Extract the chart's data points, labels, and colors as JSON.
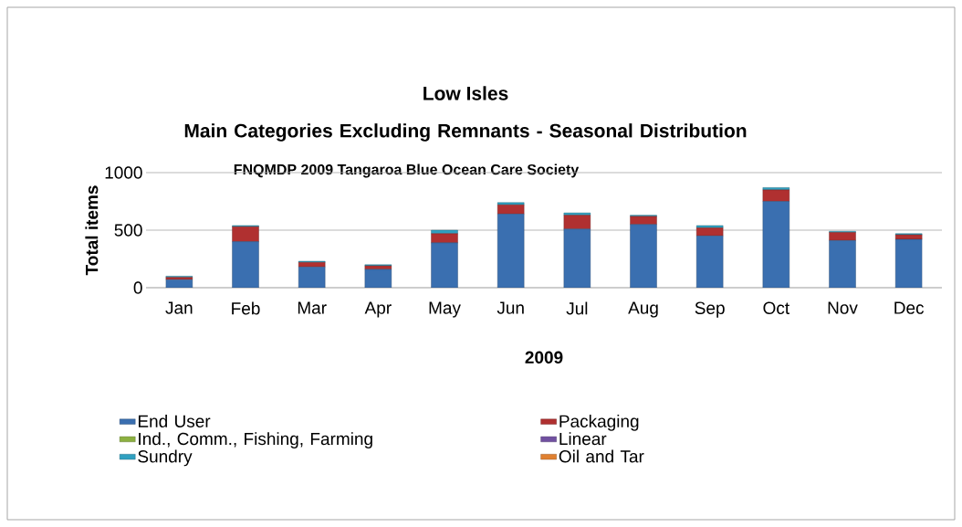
{
  "chart_data": {
    "type": "bar",
    "stacked": true,
    "title": "Low Isles",
    "subtitle": "Main Categories  Excluding Remnants - Seasonal Distribution",
    "annotations": [
      "FNQMDP 2009 Tangaroa Blue Ocean Care Society"
    ],
    "xlabel": "2009",
    "ylabel": "Total items",
    "categories": [
      "Jan",
      "Feb",
      "Mar",
      "Apr",
      "May",
      "Jun",
      "Jul",
      "Aug",
      "Sep",
      "Oct",
      "Nov",
      "Dec"
    ],
    "series": [
      {
        "name": "End User",
        "color": "#3a6fb0",
        "values": [
          70,
          400,
          180,
          160,
          390,
          640,
          510,
          550,
          450,
          750,
          410,
          420
        ]
      },
      {
        "name": "Packaging",
        "color": "#b03030",
        "values": [
          20,
          130,
          40,
          30,
          80,
          80,
          120,
          70,
          70,
          100,
          70,
          40
        ]
      },
      {
        "name": "Ind., Comm., Fishing, Farming",
        "color": "#8cb040",
        "values": [
          0,
          0,
          0,
          0,
          0,
          0,
          0,
          0,
          0,
          0,
          0,
          0
        ]
      },
      {
        "name": "Linear",
        "color": "#7050a0",
        "values": [
          0,
          0,
          0,
          0,
          0,
          0,
          0,
          0,
          0,
          0,
          0,
          0
        ]
      },
      {
        "name": "Sundry",
        "color": "#30a0c0",
        "values": [
          10,
          10,
          10,
          10,
          30,
          20,
          20,
          10,
          20,
          20,
          10,
          10
        ]
      },
      {
        "name": "Oil and Tar",
        "color": "#e08030",
        "values": [
          0,
          0,
          0,
          0,
          0,
          0,
          0,
          0,
          0,
          0,
          0,
          0
        ]
      }
    ],
    "ylim": [
      0,
      1000
    ],
    "yticks": [
      0,
      500,
      1000
    ],
    "grid": "y",
    "legend": "bottom"
  }
}
